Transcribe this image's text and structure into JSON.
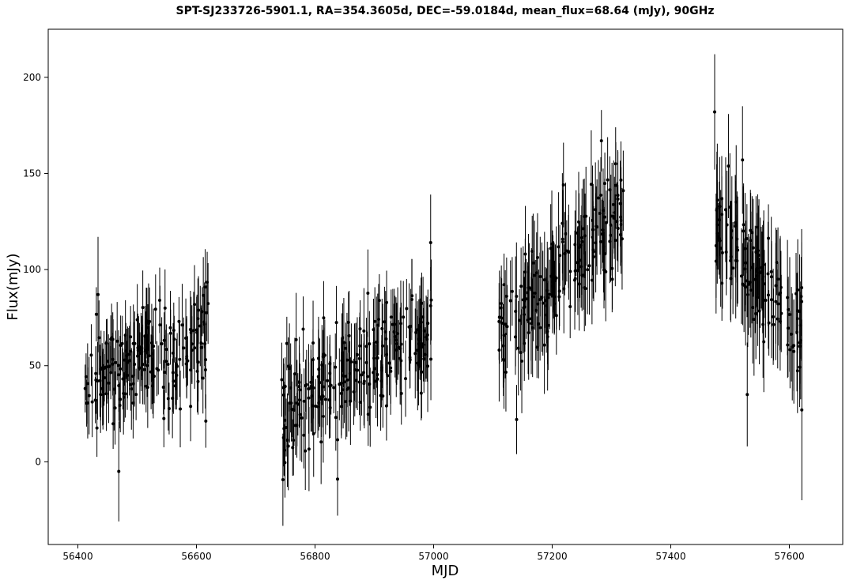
{
  "chart_data": {
    "type": "scatter",
    "title": "SPT-SJ233726-5901.1, RA=354.3605d, DEC=-59.0184d, mean_flux=68.64 (mJy), 90GHz",
    "xlabel": "MJD",
    "ylabel": "Flux(mJy)",
    "xlim": [
      56350,
      57690
    ],
    "ylim": [
      -43,
      225
    ],
    "xticks": [
      "56400",
      "56600",
      "56800",
      "57000",
      "57200",
      "57400",
      "57600"
    ],
    "yticks": [
      "0",
      "50",
      "100",
      "150",
      "200"
    ],
    "grid": false,
    "error_bars": true,
    "marker_color": "#000000",
    "observing_seasons": [
      {
        "mjd_start": 56412,
        "mjd_end": 56620,
        "flux_start": 42,
        "flux_end": 62,
        "typical_error": 17
      },
      {
        "mjd_start": 56743,
        "mjd_end": 57000,
        "flux_start": 28,
        "flux_end": 70,
        "typical_error": 19
      },
      {
        "mjd_start": 57110,
        "mjd_end": 57320,
        "flux_start": 66,
        "flux_end": 130,
        "typical_error": 22
      },
      {
        "mjd_start": 57475,
        "mjd_end": 57622,
        "flux_start": 128,
        "flux_end": 66,
        "typical_error": 24
      }
    ],
    "highlighted_points": [
      {
        "x": 56434,
        "y": 87,
        "err": 30
      },
      {
        "x": 56469,
        "y": -5,
        "err": 26
      },
      {
        "x": 56538,
        "y": 84,
        "err": 17
      },
      {
        "x": 56780,
        "y": 69,
        "err": 17
      },
      {
        "x": 56838,
        "y": -9,
        "err": 19
      },
      {
        "x": 56995,
        "y": 114,
        "err": 25
      },
      {
        "x": 57140,
        "y": 22,
        "err": 18
      },
      {
        "x": 57219,
        "y": 144,
        "err": 22
      },
      {
        "x": 57283,
        "y": 167,
        "err": 16
      },
      {
        "x": 57307,
        "y": 155,
        "err": 19
      },
      {
        "x": 57474,
        "y": 182,
        "err": 30
      },
      {
        "x": 57521,
        "y": 157,
        "err": 28
      },
      {
        "x": 57529,
        "y": 35,
        "err": 27
      },
      {
        "x": 57621,
        "y": 27,
        "err": 47
      }
    ]
  }
}
